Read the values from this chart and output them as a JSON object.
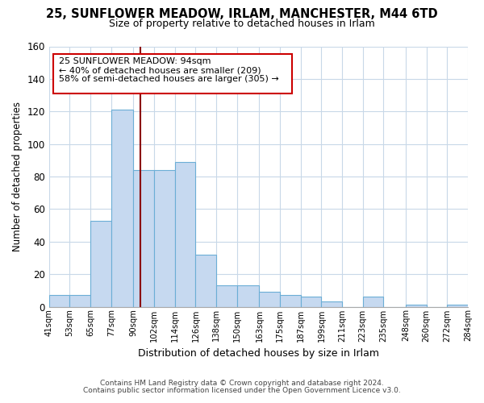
{
  "title": "25, SUNFLOWER MEADOW, IRLAM, MANCHESTER, M44 6TD",
  "subtitle": "Size of property relative to detached houses in Irlam",
  "xlabel": "Distribution of detached houses by size in Irlam",
  "ylabel": "Number of detached properties",
  "bar_color": "#c6d9f0",
  "bar_edge_color": "#6baed6",
  "bin_edges": [
    41,
    53,
    65,
    77,
    90,
    102,
    114,
    126,
    138,
    150,
    163,
    175,
    187,
    199,
    211,
    223,
    235,
    248,
    260,
    272,
    284
  ],
  "bar_heights": [
    7,
    7,
    53,
    121,
    84,
    84,
    89,
    32,
    13,
    13,
    9,
    7,
    6,
    3,
    0,
    6,
    0,
    1,
    0,
    1
  ],
  "tick_labels": [
    "41sqm",
    "53sqm",
    "65sqm",
    "77sqm",
    "90sqm",
    "102sqm",
    "114sqm",
    "126sqm",
    "138sqm",
    "150sqm",
    "163sqm",
    "175sqm",
    "187sqm",
    "199sqm",
    "211sqm",
    "223sqm",
    "235sqm",
    "248sqm",
    "260sqm",
    "272sqm",
    "284sqm"
  ],
  "ylim": [
    0,
    160
  ],
  "yticks": [
    0,
    20,
    40,
    60,
    80,
    100,
    120,
    140,
    160
  ],
  "vline_x": 94,
  "vline_color": "#8b0000",
  "annotation_line1": "25 SUNFLOWER MEADOW: 94sqm",
  "annotation_line2": "← 40% of detached houses are smaller (209)",
  "annotation_line3": "58% of semi-detached houses are larger (305) →",
  "footer_line1": "Contains HM Land Registry data © Crown copyright and database right 2024.",
  "footer_line2": "Contains public sector information licensed under the Open Government Licence v3.0.",
  "background_color": "#ffffff",
  "grid_color": "#c8d8e8"
}
